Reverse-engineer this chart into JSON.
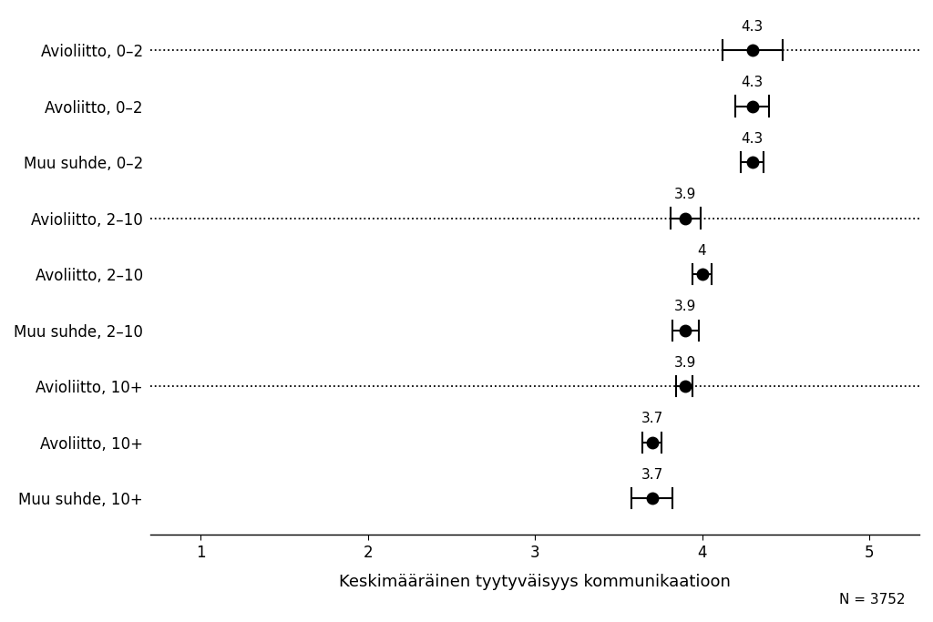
{
  "categories": [
    "Avioliitto, 0–2",
    "Avoliitto, 0–2",
    "Muu suhde, 0–2",
    "Avioliitto, 2–10",
    "Avoliitto, 2–10",
    "Muu suhde, 2–10",
    "Avioliitto, 10+",
    "Avoliitto, 10+",
    "Muu suhde, 10+"
  ],
  "means": [
    4.3,
    4.3,
    4.3,
    3.9,
    4.0,
    3.9,
    3.9,
    3.7,
    3.7
  ],
  "xerr_left": [
    0.18,
    0.1,
    0.07,
    0.09,
    0.055,
    0.08,
    0.055,
    0.055,
    0.12
  ],
  "xerr_right": [
    0.18,
    0.1,
    0.07,
    0.09,
    0.055,
    0.08,
    0.045,
    0.055,
    0.12
  ],
  "label_values": [
    "4.3",
    "4.3",
    "4.3",
    "3.9",
    "4",
    "3.9",
    "3.9",
    "3.7",
    "3.7"
  ],
  "dotted_rows": [
    0,
    3,
    6
  ],
  "xlabel": "Keskimääräinen tyytyväisyys kommunikaatioon",
  "n_label": "N = 3752",
  "xlim": [
    0.7,
    5.3
  ],
  "xticks": [
    1,
    2,
    3,
    4,
    5
  ],
  "background_color": "#ffffff",
  "dot_color": "#000000",
  "line_color": "#000000",
  "dotted_line_color": "#000000",
  "text_color": "#000000",
  "fontsize_labels": 12,
  "fontsize_xlabel": 13,
  "fontsize_values": 11,
  "fontsize_n": 11
}
